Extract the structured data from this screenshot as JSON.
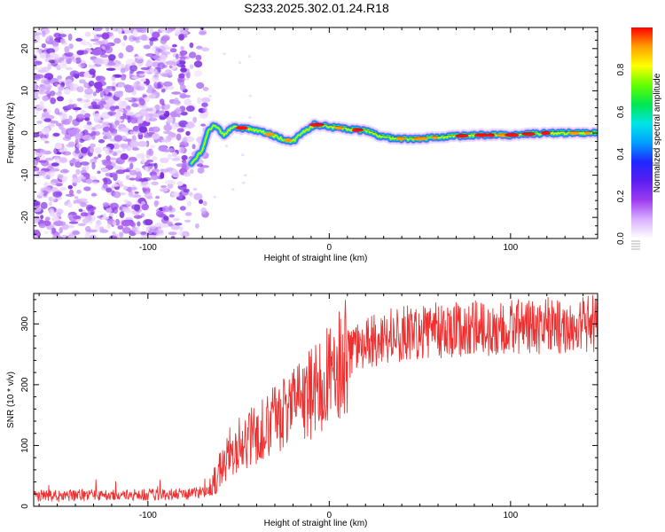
{
  "title": "S233.2025.302.01.24.R18",
  "chart_data": [
    {
      "type": "heatmap",
      "xlabel": "Height of straight line (km)",
      "ylabel": "Frequency (Hz)",
      "xlim": [
        -163,
        148
      ],
      "ylim": [
        -25,
        25
      ],
      "xticks": [
        -100,
        0,
        100
      ],
      "yticks": [
        -20,
        -10,
        0,
        10,
        20
      ],
      "noise_x_range": [
        -163,
        -68
      ],
      "signal_x_range": [
        -68,
        148
      ],
      "ridge": [
        {
          "x": -75,
          "f": -7.0
        },
        {
          "x": -70,
          "f": -4.0
        },
        {
          "x": -67,
          "f": 0.5
        },
        {
          "x": -63,
          "f": 2.0
        },
        {
          "x": -58,
          "f": -0.5
        },
        {
          "x": -53,
          "f": 1.5
        },
        {
          "x": -45,
          "f": 1.0
        },
        {
          "x": -35,
          "f": 0.0
        },
        {
          "x": -25,
          "f": -1.5
        },
        {
          "x": -20,
          "f": -2.0
        },
        {
          "x": -15,
          "f": 0.0
        },
        {
          "x": -8,
          "f": 2.0
        },
        {
          "x": 0,
          "f": 1.5
        },
        {
          "x": 10,
          "f": 1.0
        },
        {
          "x": 20,
          "f": 0.5
        },
        {
          "x": 30,
          "f": -1.0
        },
        {
          "x": 45,
          "f": -1.5
        },
        {
          "x": 60,
          "f": -1.0
        },
        {
          "x": 80,
          "f": -0.5
        },
        {
          "x": 100,
          "f": -0.5
        },
        {
          "x": 120,
          "f": 0.0
        },
        {
          "x": 148,
          "f": 0.0
        }
      ],
      "colorbar": {
        "label": "Normalized spectral amplitude",
        "range": [
          0,
          1
        ],
        "ticks": [
          0.0,
          0.2,
          0.4,
          0.6,
          0.8
        ],
        "colors": [
          "#ffffff",
          "#d8b0ff",
          "#9e3cf0",
          "#5a1ef0",
          "#1e28ff",
          "#00a0ff",
          "#00e6e6",
          "#00e650",
          "#64ff00",
          "#ffff00",
          "#ffa000",
          "#ff0000"
        ]
      }
    },
    {
      "type": "line",
      "xlabel": "Height of straight line (km)",
      "ylabel": "SNR (10 * v/v)",
      "xlim": [
        -163,
        148
      ],
      "ylim": [
        0,
        350
      ],
      "xticks": [
        -100,
        0,
        100
      ],
      "yticks": [
        0,
        100,
        200,
        300
      ],
      "color": "#ee3030",
      "trend": [
        {
          "x": -163,
          "y": 18
        },
        {
          "x": -120,
          "y": 18
        },
        {
          "x": -80,
          "y": 20
        },
        {
          "x": -66,
          "y": 25
        },
        {
          "x": -60,
          "y": 60
        },
        {
          "x": -55,
          "y": 90
        },
        {
          "x": -45,
          "y": 110
        },
        {
          "x": -30,
          "y": 140
        },
        {
          "x": -15,
          "y": 170
        },
        {
          "x": -5,
          "y": 200
        },
        {
          "x": 10,
          "y": 250
        },
        {
          "x": 30,
          "y": 280
        },
        {
          "x": 60,
          "y": 290
        },
        {
          "x": 100,
          "y": 295
        },
        {
          "x": 148,
          "y": 300
        }
      ]
    }
  ]
}
